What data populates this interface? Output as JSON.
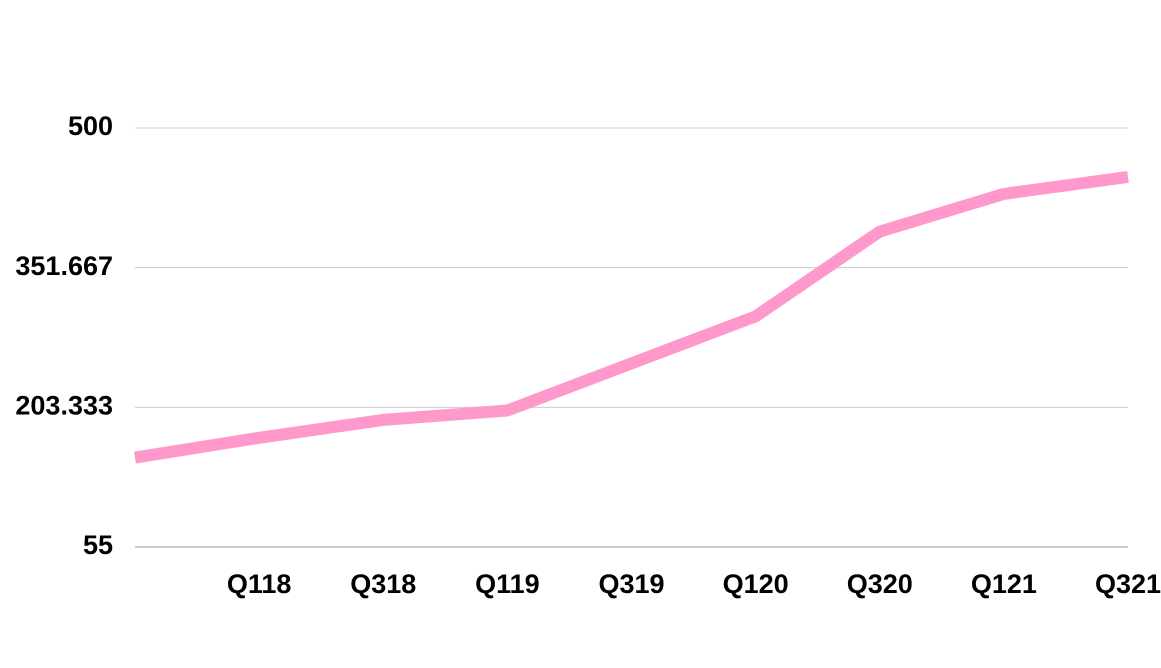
{
  "chart_data": {
    "type": "line",
    "categories": [
      null,
      "Q118",
      "Q318",
      "Q119",
      "Q319",
      "Q120",
      "Q320",
      "Q121",
      "Q321"
    ],
    "series": [
      {
        "color": "#ff99cc",
        "values": [
          150,
          171,
          190,
          200,
          250,
          300,
          390,
          430,
          448
        ]
      }
    ],
    "ylim": [
      55,
      500
    ],
    "yticks": [
      55,
      203.333,
      351.667,
      500
    ],
    "grid": true
  }
}
